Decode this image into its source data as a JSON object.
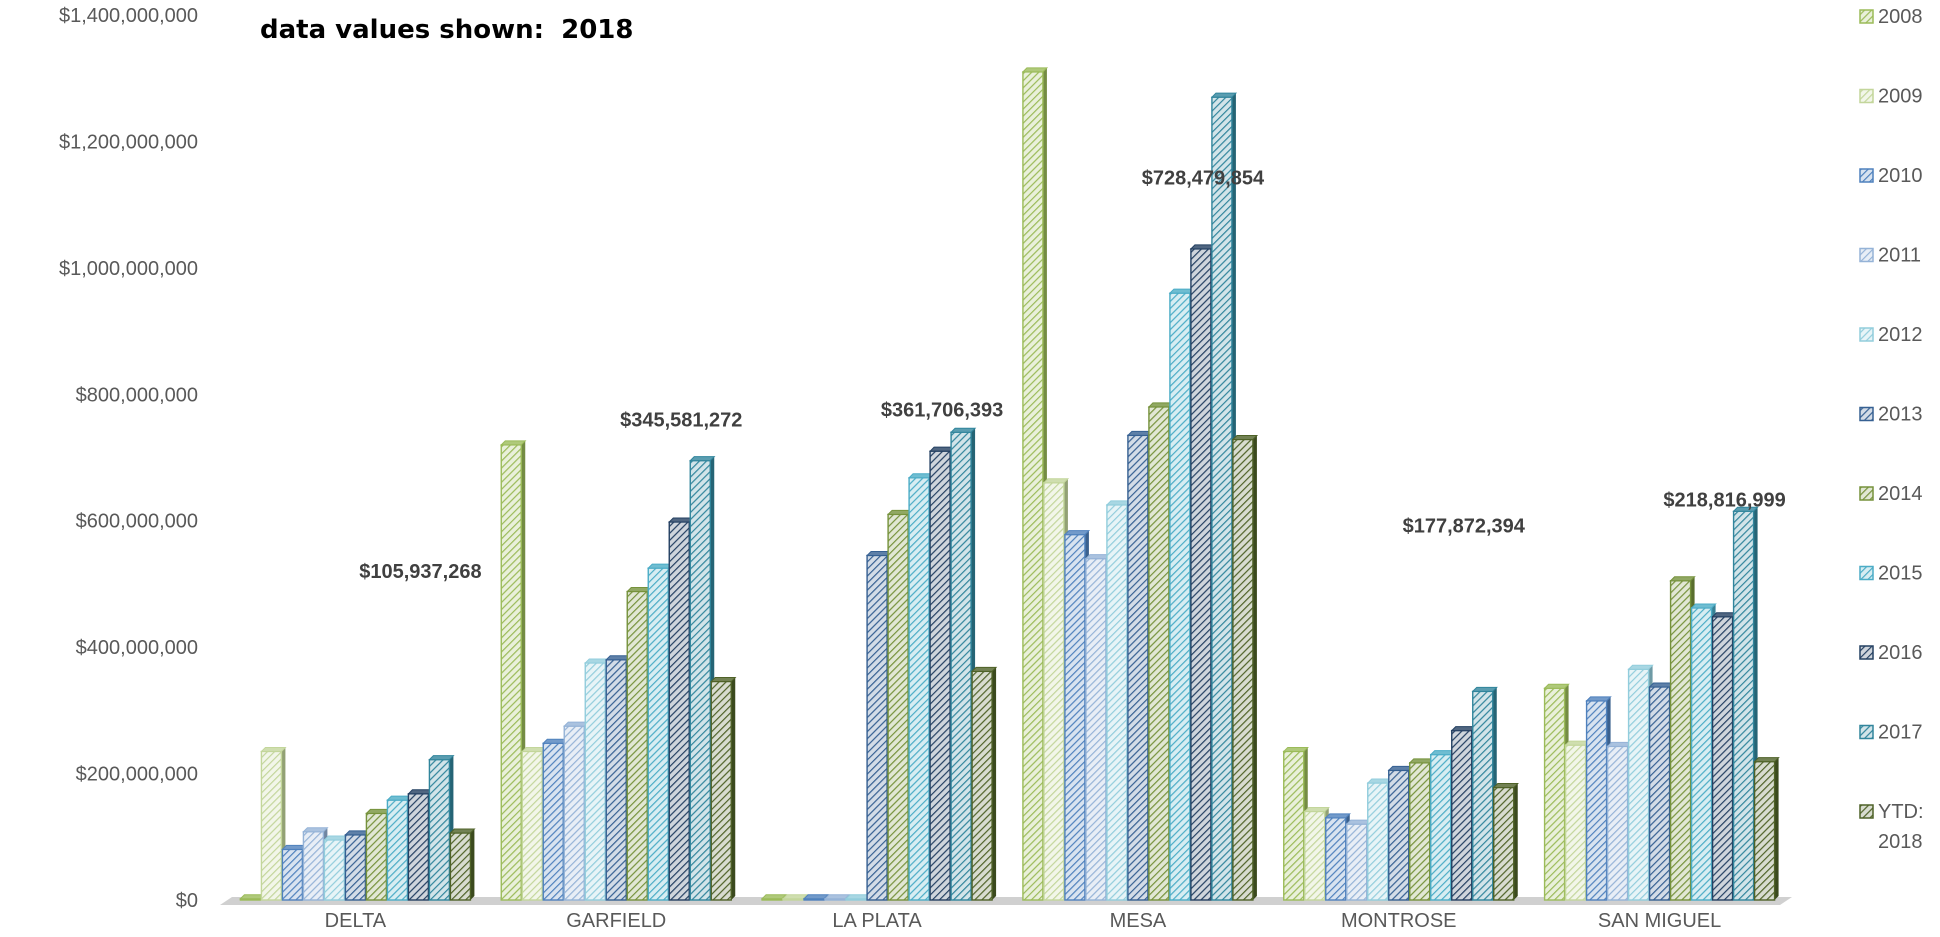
{
  "note": {
    "label": "data values shown:",
    "value": "2018"
  },
  "chart_data": {
    "type": "bar",
    "categories": [
      "DELTA",
      "GARFIELD",
      "LA PLATA",
      "MESA",
      "MONTROSE",
      "SAN MIGUEL"
    ],
    "series": [
      {
        "name": "2008",
        "color": "#9BBB59",
        "values": [
          2000000,
          720000000,
          2000000,
          1310000000,
          235000000,
          335000000
        ]
      },
      {
        "name": "2009",
        "color": "#C3D69B",
        "values": [
          235000000,
          235000000,
          2000000,
          660000000,
          140000000,
          245000000
        ]
      },
      {
        "name": "2010",
        "color": "#4F81BD",
        "values": [
          80000000,
          248000000,
          2000000,
          578000000,
          130000000,
          315000000
        ]
      },
      {
        "name": "2011",
        "color": "#95B3D7",
        "values": [
          108000000,
          275000000,
          2000000,
          540000000,
          120000000,
          243000000
        ]
      },
      {
        "name": "2012",
        "color": "#92CDDC",
        "values": [
          95000000,
          375000000,
          2000000,
          625000000,
          185000000,
          365000000
        ]
      },
      {
        "name": "2013",
        "color": "#366092",
        "values": [
          103000000,
          380000000,
          545000000,
          735000000,
          205000000,
          337000000
        ]
      },
      {
        "name": "2014",
        "color": "#76923C",
        "values": [
          137000000,
          488000000,
          610000000,
          780000000,
          217000000,
          505000000
        ]
      },
      {
        "name": "2015",
        "color": "#4BACC6",
        "values": [
          158000000,
          525000000,
          668000000,
          960000000,
          230000000,
          462000000
        ]
      },
      {
        "name": "2016",
        "color": "#244062",
        "values": [
          168000000,
          598000000,
          710000000,
          1030000000,
          268000000,
          448000000
        ]
      },
      {
        "name": "2017",
        "color": "#31859C",
        "values": [
          222000000,
          695000000,
          740000000,
          1270000000,
          330000000,
          615000000
        ]
      },
      {
        "name": "YTD: 2018",
        "color": "#4F6228",
        "values": [
          105937268,
          345581272,
          361706393,
          728479854,
          177872394,
          218816999
        ]
      }
    ],
    "data_labels": [
      "$105,937,268",
      "$345,581,272",
      "$361,706,393",
      "$728,479,854",
      "$177,872,394",
      "$218,816,999"
    ],
    "y_ticks": [
      "$0",
      "$200,000,000",
      "$400,000,000",
      "$600,000,000",
      "$800,000,000",
      "$1,000,000,000",
      "$1,200,000,000",
      "$1,400,000,000"
    ],
    "ylim": [
      0,
      1400000000
    ],
    "legend_position": "right",
    "grid": false,
    "pattern": "diagonal-hatch",
    "style": "3d"
  }
}
